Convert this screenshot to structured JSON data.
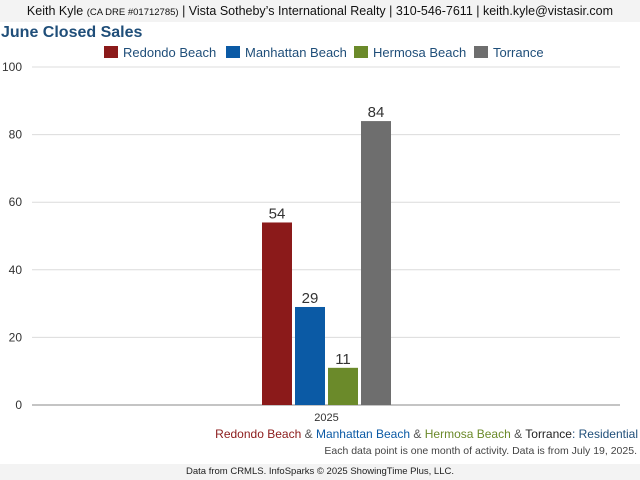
{
  "header": {
    "name": "Keith Kyle",
    "dre": "(CA DRE #01712785)",
    "rest": "| Vista Sotheby’s International Realty | 310-546-7611 | keith.kyle@vistasir.com"
  },
  "chart_data": {
    "type": "bar",
    "title": "June Closed Sales",
    "categories": [
      "2025"
    ],
    "series": [
      {
        "name": "Redondo Beach",
        "values": [
          54
        ],
        "color": "#8b1a1a"
      },
      {
        "name": "Manhattan Beach",
        "values": [
          29
        ],
        "color": "#0b5aa5"
      },
      {
        "name": "Hermosa Beach",
        "values": [
          11
        ],
        "color": "#6b8a2a"
      },
      {
        "name": "Torrance",
        "values": [
          84
        ],
        "color": "#6e6e6e"
      }
    ],
    "ylim": [
      0,
      100
    ],
    "yticks": [
      0,
      20,
      40,
      60,
      80,
      100
    ],
    "grid": true,
    "legend": "top"
  },
  "footer": {
    "amp": "&",
    "suffix": ": Residential",
    "note": "Each data point is one month of activity. Data is from July 19, 2025."
  },
  "source": "Data from CRMLS. InfoSparks © 2025 ShowingTime Plus, LLC."
}
